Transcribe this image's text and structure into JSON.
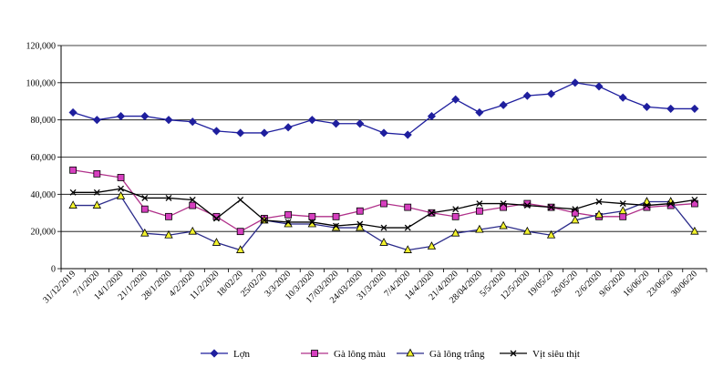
{
  "chart_data": {
    "type": "line",
    "title": "",
    "xlabel": "",
    "ylabel": "",
    "ylim": [
      0,
      120000
    ],
    "y_ticks": [
      "0",
      "20,000",
      "40,000",
      "60,000",
      "80,000",
      "100,000",
      "120,000"
    ],
    "y_tick_values": [
      0,
      20000,
      40000,
      60000,
      80000,
      100000,
      120000
    ],
    "grid": "horizontal",
    "legend_position": "bottom",
    "categories": [
      "31/12/2019",
      "7/1/2020",
      "14/1/2020",
      "21/1/2020",
      "28/1/2020",
      "4/2/2020",
      "11/2/2020",
      "18/02/20",
      "25/02/20",
      "3/3/2020",
      "10/3/2020",
      "17/03/2020",
      "24/03/2020",
      "31/3/2020",
      "7/4/2020",
      "14/4/2020",
      "21/4/2020",
      "28/04/2020",
      "5/5/2020",
      "12/5/2020",
      "19/05/20",
      "26/05/20",
      "2/6/2020",
      "9/6/2020",
      "16/06/20",
      "23/06/20",
      "30/06/20"
    ],
    "series": [
      {
        "name": "Lợn",
        "color": "#1f1f9e",
        "marker": "diamond",
        "values": [
          84000,
          80000,
          82000,
          82000,
          80000,
          79000,
          74000,
          73000,
          73000,
          76000,
          80000,
          78000,
          78000,
          73000,
          72000,
          82000,
          91000,
          84000,
          88000,
          93000,
          94000,
          100000,
          98000,
          92000,
          87000,
          86000,
          86000
        ]
      },
      {
        "name": "Gà lông màu",
        "color": "#b0308a",
        "marker": "square",
        "values": [
          53000,
          51000,
          49000,
          32000,
          28000,
          34000,
          28000,
          20000,
          27000,
          29000,
          28000,
          28000,
          31000,
          35000,
          33000,
          30000,
          28000,
          31000,
          33000,
          35000,
          33000,
          30000,
          28000,
          28000,
          33000,
          34000,
          35000
        ]
      },
      {
        "name": "Gà lông trắng",
        "color": "#2a2a8a",
        "marker": "triangle",
        "values": [
          34000,
          34000,
          39000,
          19000,
          18000,
          20000,
          14000,
          10000,
          26000,
          24000,
          24000,
          22000,
          22000,
          14000,
          10000,
          12000,
          19000,
          21000,
          23000,
          20000,
          18000,
          26000,
          29000,
          31000,
          36000,
          36000,
          20000
        ]
      },
      {
        "name": "Vịt siêu thịt",
        "color": "#000000",
        "marker": "x",
        "values": [
          41000,
          41000,
          43000,
          38000,
          38000,
          37000,
          27000,
          37000,
          26000,
          25000,
          25000,
          23000,
          24000,
          22000,
          22000,
          30000,
          32000,
          35000,
          35000,
          34000,
          33000,
          32000,
          36000,
          35000,
          34000,
          35000,
          37000
        ]
      }
    ]
  }
}
